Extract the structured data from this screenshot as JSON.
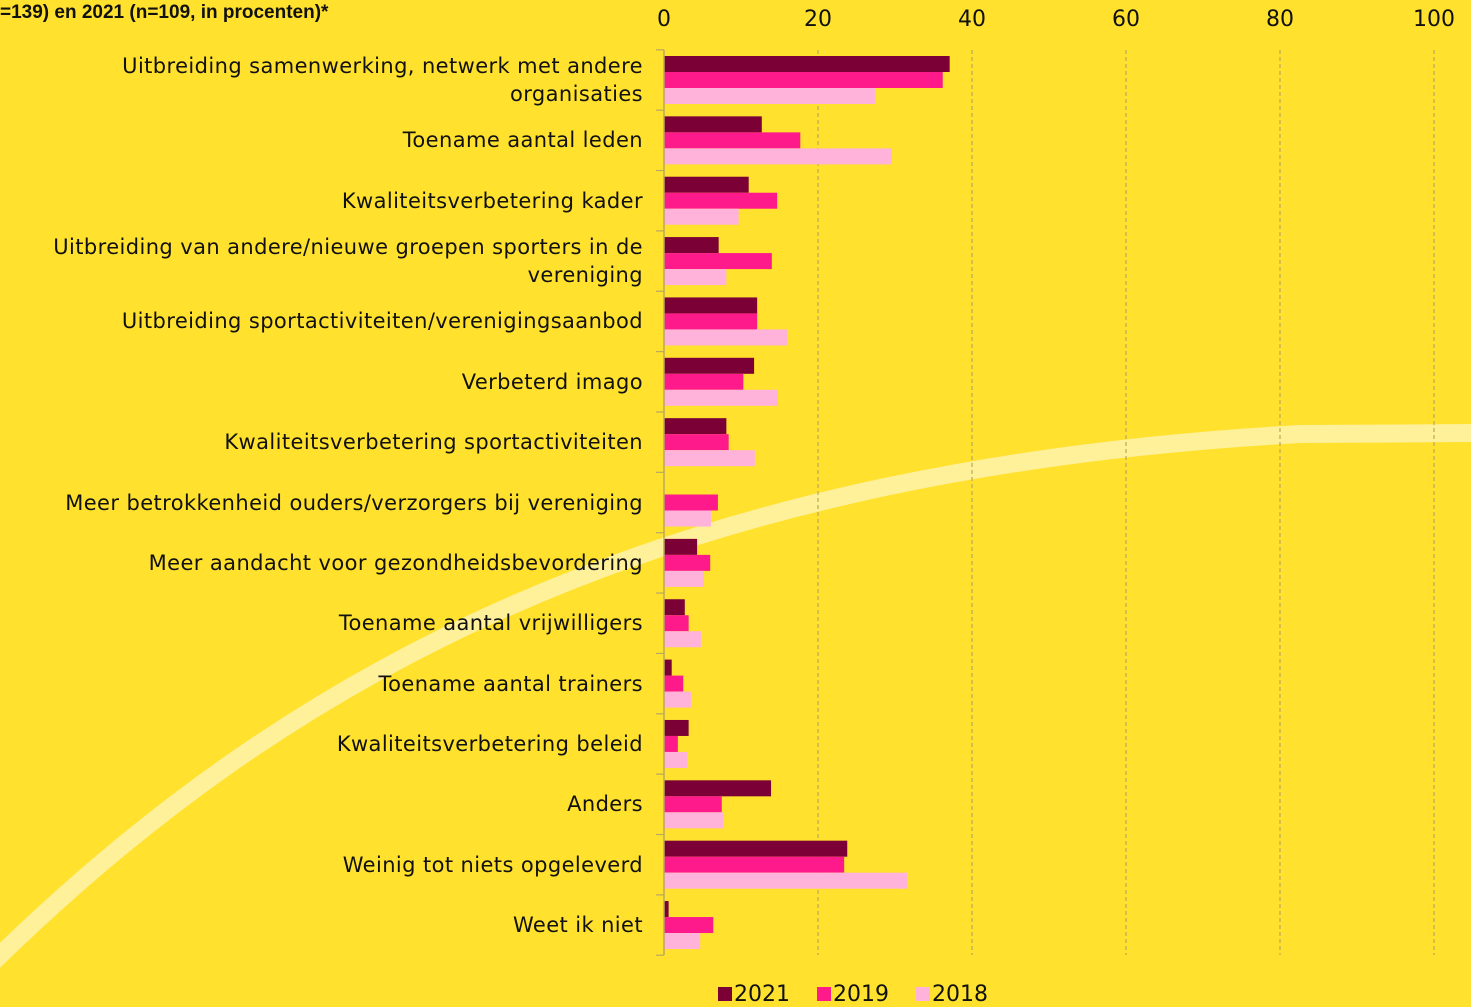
{
  "chart_data": {
    "type": "hbar",
    "title": "=139) en 2021 (n=109, in procenten)*",
    "categories": [
      "Uitbreiding samenwerking, netwerk met andere organisaties",
      "Toename aantal leden",
      "Kwaliteitsverbetering kader",
      "Uitbreiding van andere/nieuwe groepen sporters in de vereniging",
      "Uitbreiding sportactiviteiten/verenigingsaanbod",
      "Verbeterd imago",
      "Kwaliteitsverbetering sportactiviteiten",
      "Meer betrokkenheid ouders/verzorgers bij vereniging",
      "Meer aandacht voor gezondheidsbevordering",
      "Toename aantal vrijwilligers",
      "Toename aantal trainers",
      "Kwaliteitsverbetering beleid",
      "Anders",
      "Weinig tot niets opgeleverd",
      "Weet ik niet"
    ],
    "series": [
      {
        "name": "2021",
        "color": "#7b0035",
        "values": [
          37.1,
          12.7,
          11.0,
          7.1,
          12.1,
          11.7,
          8.1,
          0,
          4.3,
          2.7,
          1.0,
          3.2,
          13.9,
          23.8,
          0.6
        ]
      },
      {
        "name": "2019",
        "color": "#ff1a8c",
        "values": [
          36.2,
          17.7,
          14.7,
          14.0,
          12.1,
          10.3,
          8.4,
          7.0,
          6.0,
          3.2,
          2.5,
          1.8,
          7.5,
          23.4,
          6.4
        ]
      },
      {
        "name": "2018",
        "color": "#ffb3da",
        "values": [
          27.5,
          29.6,
          9.7,
          8.1,
          16.0,
          14.8,
          11.8,
          6.1,
          5.2,
          4.8,
          3.5,
          3.0,
          7.7,
          31.6,
          4.7
        ]
      }
    ],
    "xlim": [
      0,
      100
    ],
    "xticks": [
      0,
      20,
      40,
      60,
      80,
      100
    ],
    "grid": true
  }
}
